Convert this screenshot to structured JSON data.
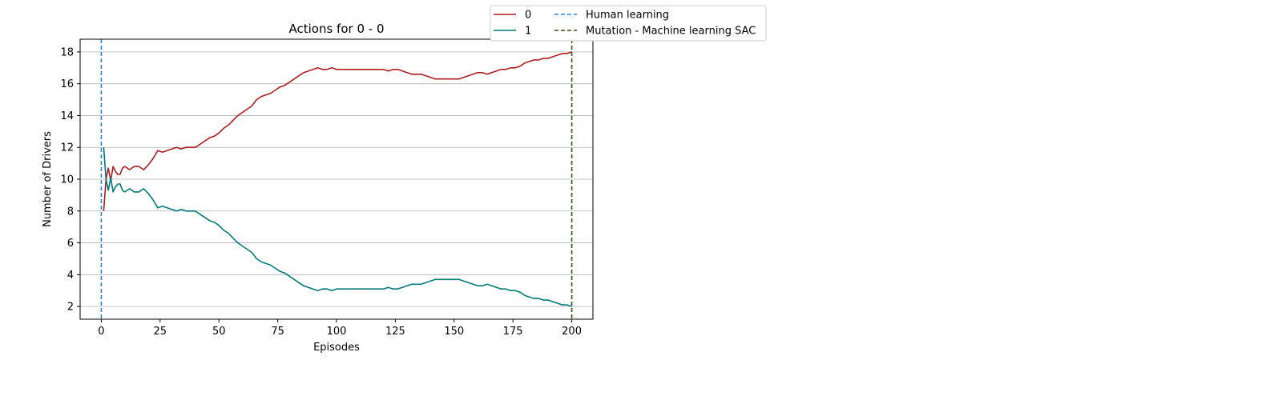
{
  "chart_data": {
    "type": "line",
    "title": "Actions for 0 - 0",
    "xlabel": "Episodes",
    "ylabel": "Number of Drivers",
    "xlim": [
      -9,
      209
    ],
    "ylim": [
      1.2,
      18.8
    ],
    "xticks": [
      0,
      25,
      50,
      75,
      100,
      125,
      150,
      175,
      200
    ],
    "yticks": [
      2,
      4,
      6,
      8,
      10,
      12,
      14,
      16,
      18
    ],
    "grid": "horizontal",
    "legend_position": "top-center-outside",
    "series": [
      {
        "name": "0",
        "color": "#b01c1c",
        "x": [
          1,
          2,
          3,
          4,
          5,
          6,
          7,
          8,
          9,
          10,
          12,
          14,
          16,
          18,
          20,
          22,
          24,
          26,
          28,
          30,
          32,
          34,
          36,
          38,
          40,
          42,
          44,
          46,
          48,
          50,
          52,
          54,
          56,
          58,
          60,
          62,
          64,
          66,
          68,
          70,
          72,
          74,
          76,
          78,
          80,
          82,
          84,
          86,
          88,
          90,
          92,
          94,
          96,
          98,
          100,
          102,
          104,
          106,
          108,
          110,
          112,
          114,
          116,
          118,
          120,
          122,
          124,
          126,
          128,
          130,
          132,
          134,
          136,
          138,
          140,
          142,
          144,
          146,
          148,
          150,
          152,
          154,
          156,
          158,
          160,
          162,
          164,
          166,
          168,
          170,
          172,
          174,
          176,
          178,
          180,
          182,
          184,
          186,
          188,
          190,
          192,
          194,
          196,
          198,
          200
        ],
        "values": [
          8.0,
          10.0,
          10.7,
          9.9,
          10.8,
          10.5,
          10.3,
          10.3,
          10.7,
          10.8,
          10.6,
          10.8,
          10.8,
          10.6,
          10.9,
          11.3,
          11.8,
          11.7,
          11.8,
          11.9,
          12.0,
          11.9,
          12.0,
          12.0,
          12.0,
          12.2,
          12.4,
          12.6,
          12.7,
          12.9,
          13.2,
          13.4,
          13.7,
          14.0,
          14.2,
          14.4,
          14.6,
          15.0,
          15.2,
          15.3,
          15.4,
          15.6,
          15.8,
          15.9,
          16.1,
          16.3,
          16.5,
          16.7,
          16.8,
          16.9,
          17.0,
          16.9,
          16.9,
          17.0,
          16.9,
          16.9,
          16.9,
          16.9,
          16.9,
          16.9,
          16.9,
          16.9,
          16.9,
          16.9,
          16.9,
          16.8,
          16.9,
          16.9,
          16.8,
          16.7,
          16.6,
          16.6,
          16.6,
          16.5,
          16.4,
          16.3,
          16.3,
          16.3,
          16.3,
          16.3,
          16.3,
          16.4,
          16.5,
          16.6,
          16.7,
          16.7,
          16.6,
          16.7,
          16.8,
          16.9,
          16.9,
          17.0,
          17.0,
          17.1,
          17.3,
          17.4,
          17.5,
          17.5,
          17.6,
          17.6,
          17.7,
          17.8,
          17.9,
          17.9,
          18.0
        ]
      },
      {
        "name": "1",
        "color": "#007a7a",
        "x": [
          1,
          2,
          3,
          4,
          5,
          6,
          7,
          8,
          9,
          10,
          12,
          14,
          16,
          18,
          20,
          22,
          24,
          26,
          28,
          30,
          32,
          34,
          36,
          38,
          40,
          42,
          44,
          46,
          48,
          50,
          52,
          54,
          56,
          58,
          60,
          62,
          64,
          66,
          68,
          70,
          72,
          74,
          76,
          78,
          80,
          82,
          84,
          86,
          88,
          90,
          92,
          94,
          96,
          98,
          100,
          102,
          104,
          106,
          108,
          110,
          112,
          114,
          116,
          118,
          120,
          122,
          124,
          126,
          128,
          130,
          132,
          134,
          136,
          138,
          140,
          142,
          144,
          146,
          148,
          150,
          152,
          154,
          156,
          158,
          160,
          162,
          164,
          166,
          168,
          170,
          172,
          174,
          176,
          178,
          180,
          182,
          184,
          186,
          188,
          190,
          192,
          194,
          196,
          198,
          200
        ],
        "values": [
          12.0,
          10.0,
          9.3,
          10.1,
          9.2,
          9.5,
          9.7,
          9.7,
          9.3,
          9.2,
          9.4,
          9.2,
          9.2,
          9.4,
          9.1,
          8.7,
          8.2,
          8.3,
          8.2,
          8.1,
          8.0,
          8.1,
          8.0,
          8.0,
          8.0,
          7.8,
          7.6,
          7.4,
          7.3,
          7.1,
          6.8,
          6.6,
          6.3,
          6.0,
          5.8,
          5.6,
          5.4,
          5.0,
          4.8,
          4.7,
          4.6,
          4.4,
          4.2,
          4.1,
          3.9,
          3.7,
          3.5,
          3.3,
          3.2,
          3.1,
          3.0,
          3.1,
          3.1,
          3.0,
          3.1,
          3.1,
          3.1,
          3.1,
          3.1,
          3.1,
          3.1,
          3.1,
          3.1,
          3.1,
          3.1,
          3.2,
          3.1,
          3.1,
          3.2,
          3.3,
          3.4,
          3.4,
          3.4,
          3.5,
          3.6,
          3.7,
          3.7,
          3.7,
          3.7,
          3.7,
          3.7,
          3.6,
          3.5,
          3.4,
          3.3,
          3.3,
          3.4,
          3.3,
          3.2,
          3.1,
          3.1,
          3.0,
          3.0,
          2.9,
          2.7,
          2.6,
          2.5,
          2.5,
          2.4,
          2.4,
          2.3,
          2.2,
          2.1,
          2.1,
          2.0
        ]
      }
    ],
    "vlines": [
      {
        "name": "Human learning",
        "x": 0,
        "color": "#1e88e5",
        "style": "dashed"
      },
      {
        "name": "Mutation - Machine learning SAC",
        "x": 200,
        "color": "#33501a",
        "style": "dashed"
      }
    ]
  }
}
